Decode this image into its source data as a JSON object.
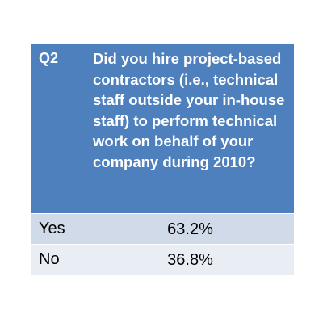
{
  "table": {
    "header": {
      "q_label": "Q2",
      "question": "Did you hire project-based contractors (i.e., technical staff outside your in-house staff) to perform technical work on behalf of your company during 2010?"
    },
    "rows": [
      {
        "label": "Yes",
        "value": "63.2%"
      },
      {
        "label": "No",
        "value": "36.8%"
      }
    ]
  },
  "colors": {
    "header_bg": "#4e80bd",
    "row_odd_bg": "#d1dae9",
    "row_even_bg": "#e9edf4"
  },
  "chart_data": {
    "type": "table",
    "title": "",
    "columns": [
      "Q2",
      "Did you hire project-based contractors (i.e., technical staff outside your in-house staff) to perform technical work on behalf of your company during 2010?"
    ],
    "categories": [
      "Yes",
      "No"
    ],
    "values": [
      63.2,
      36.8
    ],
    "unit": "%"
  }
}
